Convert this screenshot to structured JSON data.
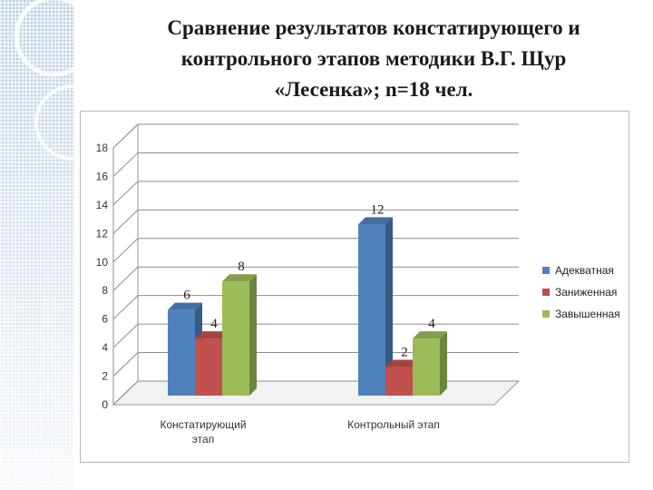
{
  "title": {
    "line1": "Сравнение результатов констатирующего и",
    "line2": "контрольного этапов методики В.Г. Щур",
    "line3": "«Лесенка»; n=18 чел."
  },
  "chart_data": {
    "type": "bar",
    "title": "",
    "xlabel": "",
    "ylabel": "",
    "categories": [
      "Констатирующий этап",
      "Контрольный этап"
    ],
    "series": [
      {
        "name": "Адекватная",
        "values": [
          6,
          12
        ],
        "color": "#4f81bd"
      },
      {
        "name": "Заниженная",
        "values": [
          4,
          2
        ],
        "color": "#c0504d"
      },
      {
        "name": "Завышенная",
        "values": [
          8,
          4
        ],
        "color": "#9bbb59"
      }
    ],
    "ylim": [
      0,
      18
    ],
    "yticks": [
      0,
      2,
      4,
      6,
      8,
      10,
      12,
      14,
      16,
      18
    ],
    "grid": true,
    "style": "3d",
    "legend_position": "right"
  }
}
